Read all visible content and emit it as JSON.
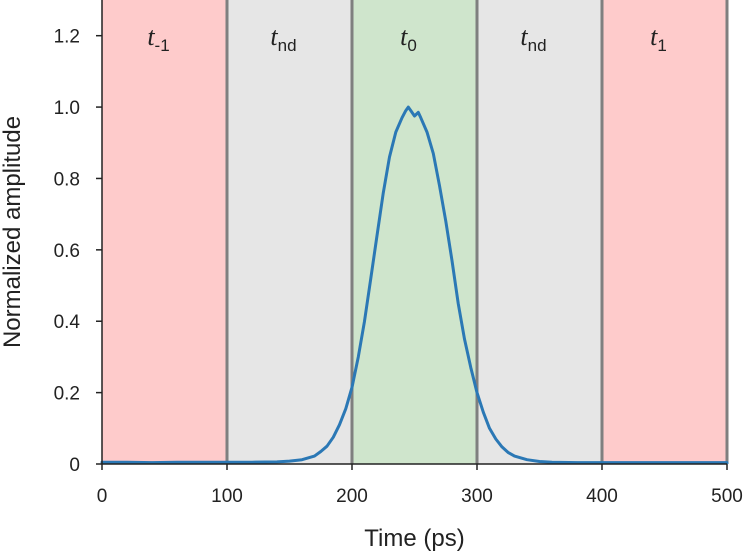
{
  "chart_data": {
    "type": "line",
    "title": "",
    "xlabel": "Time (ps)",
    "ylabel": "Normalized amplitude",
    "xlim": [
      0,
      500
    ],
    "ylim": [
      0,
      1.3
    ],
    "x_ticks": [
      0,
      100,
      200,
      300,
      400,
      500
    ],
    "x_tick_labels": [
      "0",
      "100",
      "200",
      "300",
      "400",
      "500"
    ],
    "y_ticks": [
      0,
      0.2,
      0.4,
      0.6,
      0.8,
      1.0,
      1.2
    ],
    "y_tick_labels": [
      "0",
      "0.2",
      "0.4",
      "0.6",
      "0.8",
      "1.0",
      "1.2"
    ],
    "grid": false,
    "regions": [
      {
        "x0": 0,
        "x1": 100,
        "label_main": "t",
        "label_sub": "-1",
        "color": "#fecbcb"
      },
      {
        "x0": 100,
        "x1": 200,
        "label_main": "t",
        "label_sub": "nd",
        "color": "#e6e6e6"
      },
      {
        "x0": 200,
        "x1": 300,
        "label_main": "t",
        "label_sub": "0",
        "color": "#cfe5cc"
      },
      {
        "x0": 300,
        "x1": 400,
        "label_main": "t",
        "label_sub": "nd",
        "color": "#e6e6e6"
      },
      {
        "x0": 400,
        "x1": 500,
        "label_main": "t",
        "label_sub": "1",
        "color": "#fecbcb"
      }
    ],
    "boundaries": [
      100,
      200,
      300,
      400,
      500
    ],
    "boundary_color": "#7f7f7f",
    "series": [
      {
        "color": "#2b78b5",
        "x": [
          0,
          20,
          40,
          60,
          80,
          100,
          120,
          140,
          150,
          160,
          170,
          175,
          180,
          185,
          190,
          195,
          200,
          205,
          210,
          215,
          220,
          225,
          230,
          235,
          240,
          243,
          245,
          247,
          250,
          253,
          255,
          260,
          265,
          270,
          275,
          280,
          285,
          290,
          295,
          300,
          305,
          310,
          315,
          320,
          325,
          330,
          340,
          350,
          360,
          380,
          400,
          450,
          500
        ],
        "y": [
          0.005,
          0.005,
          0.004,
          0.005,
          0.005,
          0.005,
          0.005,
          0.006,
          0.008,
          0.012,
          0.022,
          0.035,
          0.05,
          0.075,
          0.11,
          0.155,
          0.215,
          0.3,
          0.4,
          0.52,
          0.64,
          0.76,
          0.86,
          0.93,
          0.97,
          0.99,
          1.0,
          0.99,
          0.975,
          0.985,
          0.97,
          0.93,
          0.87,
          0.78,
          0.68,
          0.57,
          0.45,
          0.35,
          0.27,
          0.2,
          0.145,
          0.1,
          0.07,
          0.048,
          0.032,
          0.022,
          0.012,
          0.007,
          0.005,
          0.004,
          0.004,
          0.004,
          0.004
        ]
      }
    ]
  }
}
